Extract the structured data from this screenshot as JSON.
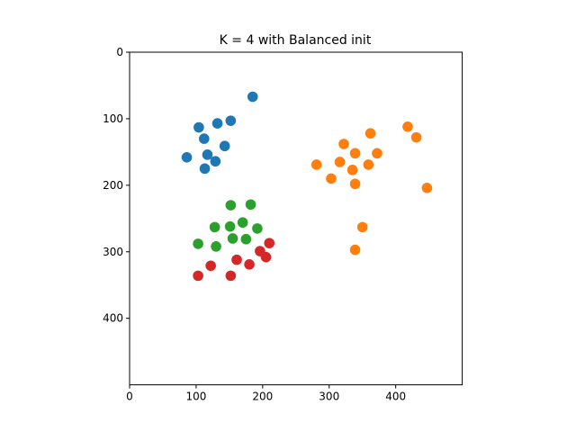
{
  "chart_data": {
    "type": "scatter",
    "title": "K = 4 with Balanced init",
    "xlabel": "",
    "ylabel": "",
    "xlim": [
      0,
      500
    ],
    "ylim": [
      500,
      0
    ],
    "y_inverted": true,
    "aspect": "equal",
    "grid": false,
    "legend": "none",
    "xticks": [
      0,
      100,
      200,
      300,
      400
    ],
    "yticks": [
      0,
      100,
      200,
      300,
      400
    ],
    "series": [
      {
        "color": "#1f77b4",
        "points": [
          [
            185,
            67
          ],
          [
            152,
            103
          ],
          [
            132,
            107
          ],
          [
            104,
            113
          ],
          [
            112,
            130
          ],
          [
            143,
            141
          ],
          [
            117,
            154
          ],
          [
            86,
            158
          ],
          [
            129,
            164
          ],
          [
            113,
            175
          ]
        ]
      },
      {
        "color": "#ff7f0e",
        "points": [
          [
            418,
            112
          ],
          [
            362,
            122
          ],
          [
            431,
            128
          ],
          [
            322,
            138
          ],
          [
            372,
            152
          ],
          [
            339,
            152
          ],
          [
            316,
            165
          ],
          [
            281,
            169
          ],
          [
            359,
            169
          ],
          [
            335,
            177
          ],
          [
            303,
            190
          ],
          [
            339,
            198
          ],
          [
            447,
            204
          ],
          [
            350,
            263
          ],
          [
            339,
            297
          ]
        ]
      },
      {
        "color": "#2ca02c",
        "points": [
          [
            152,
            230
          ],
          [
            182,
            229
          ],
          [
            170,
            256
          ],
          [
            128,
            263
          ],
          [
            151,
            262
          ],
          [
            192,
            265
          ],
          [
            155,
            280
          ],
          [
            175,
            281
          ],
          [
            103,
            288
          ],
          [
            130,
            292
          ]
        ]
      },
      {
        "color": "#d62728",
        "points": [
          [
            210,
            287
          ],
          [
            196,
            299
          ],
          [
            205,
            308
          ],
          [
            161,
            312
          ],
          [
            122,
            321
          ],
          [
            180,
            319
          ],
          [
            103,
            336
          ],
          [
            152,
            336
          ]
        ]
      }
    ]
  }
}
